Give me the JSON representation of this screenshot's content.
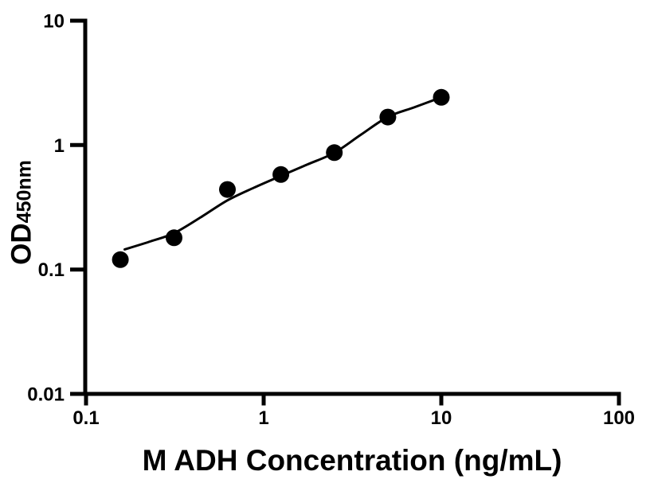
{
  "style": {
    "background": "#ffffff",
    "axis_color": "#000000",
    "marker_color": "#000000",
    "curve_color": "#000000",
    "text_color": "#000000"
  },
  "chart_data": {
    "type": "scatter",
    "title": "",
    "xlabel": "M ADH Concentration (ng/mL)",
    "ylabel": "OD",
    "ylabel_sub": "450nm",
    "x_scale": "log",
    "y_scale": "log",
    "xlim": [
      0.1,
      100
    ],
    "ylim": [
      0.01,
      10
    ],
    "x_ticks": [
      0.1,
      1,
      10,
      100
    ],
    "x_tick_labels": [
      "0.1",
      "1",
      "10",
      "100"
    ],
    "y_ticks": [
      0.01,
      0.1,
      1,
      10
    ],
    "y_tick_labels": [
      "0.01",
      "0.1",
      "1",
      "10"
    ],
    "grid": false,
    "legend": "none",
    "series": [
      {
        "marker": "circle",
        "color": "#000000",
        "points": [
          {
            "x": 0.156,
            "y": 0.12
          },
          {
            "x": 0.313,
            "y": 0.18
          },
          {
            "x": 0.625,
            "y": 0.44
          },
          {
            "x": 1.25,
            "y": 0.58
          },
          {
            "x": 2.5,
            "y": 0.87
          },
          {
            "x": 5,
            "y": 1.68
          },
          {
            "x": 10,
            "y": 2.42
          }
        ]
      }
    ],
    "fit_curve": {
      "description": "fitted standard curve",
      "samples": [
        [
          0.165,
          0.145
        ],
        [
          0.233,
          0.169
        ],
        [
          0.313,
          0.196
        ],
        [
          0.443,
          0.263
        ],
        [
          0.622,
          0.358
        ],
        [
          0.883,
          0.455
        ],
        [
          1.25,
          0.566
        ],
        [
          1.77,
          0.7
        ],
        [
          2.5,
          0.867
        ],
        [
          3.52,
          1.21
        ],
        [
          5,
          1.683
        ],
        [
          7.04,
          2.01
        ],
        [
          10,
          2.42
        ]
      ]
    }
  }
}
